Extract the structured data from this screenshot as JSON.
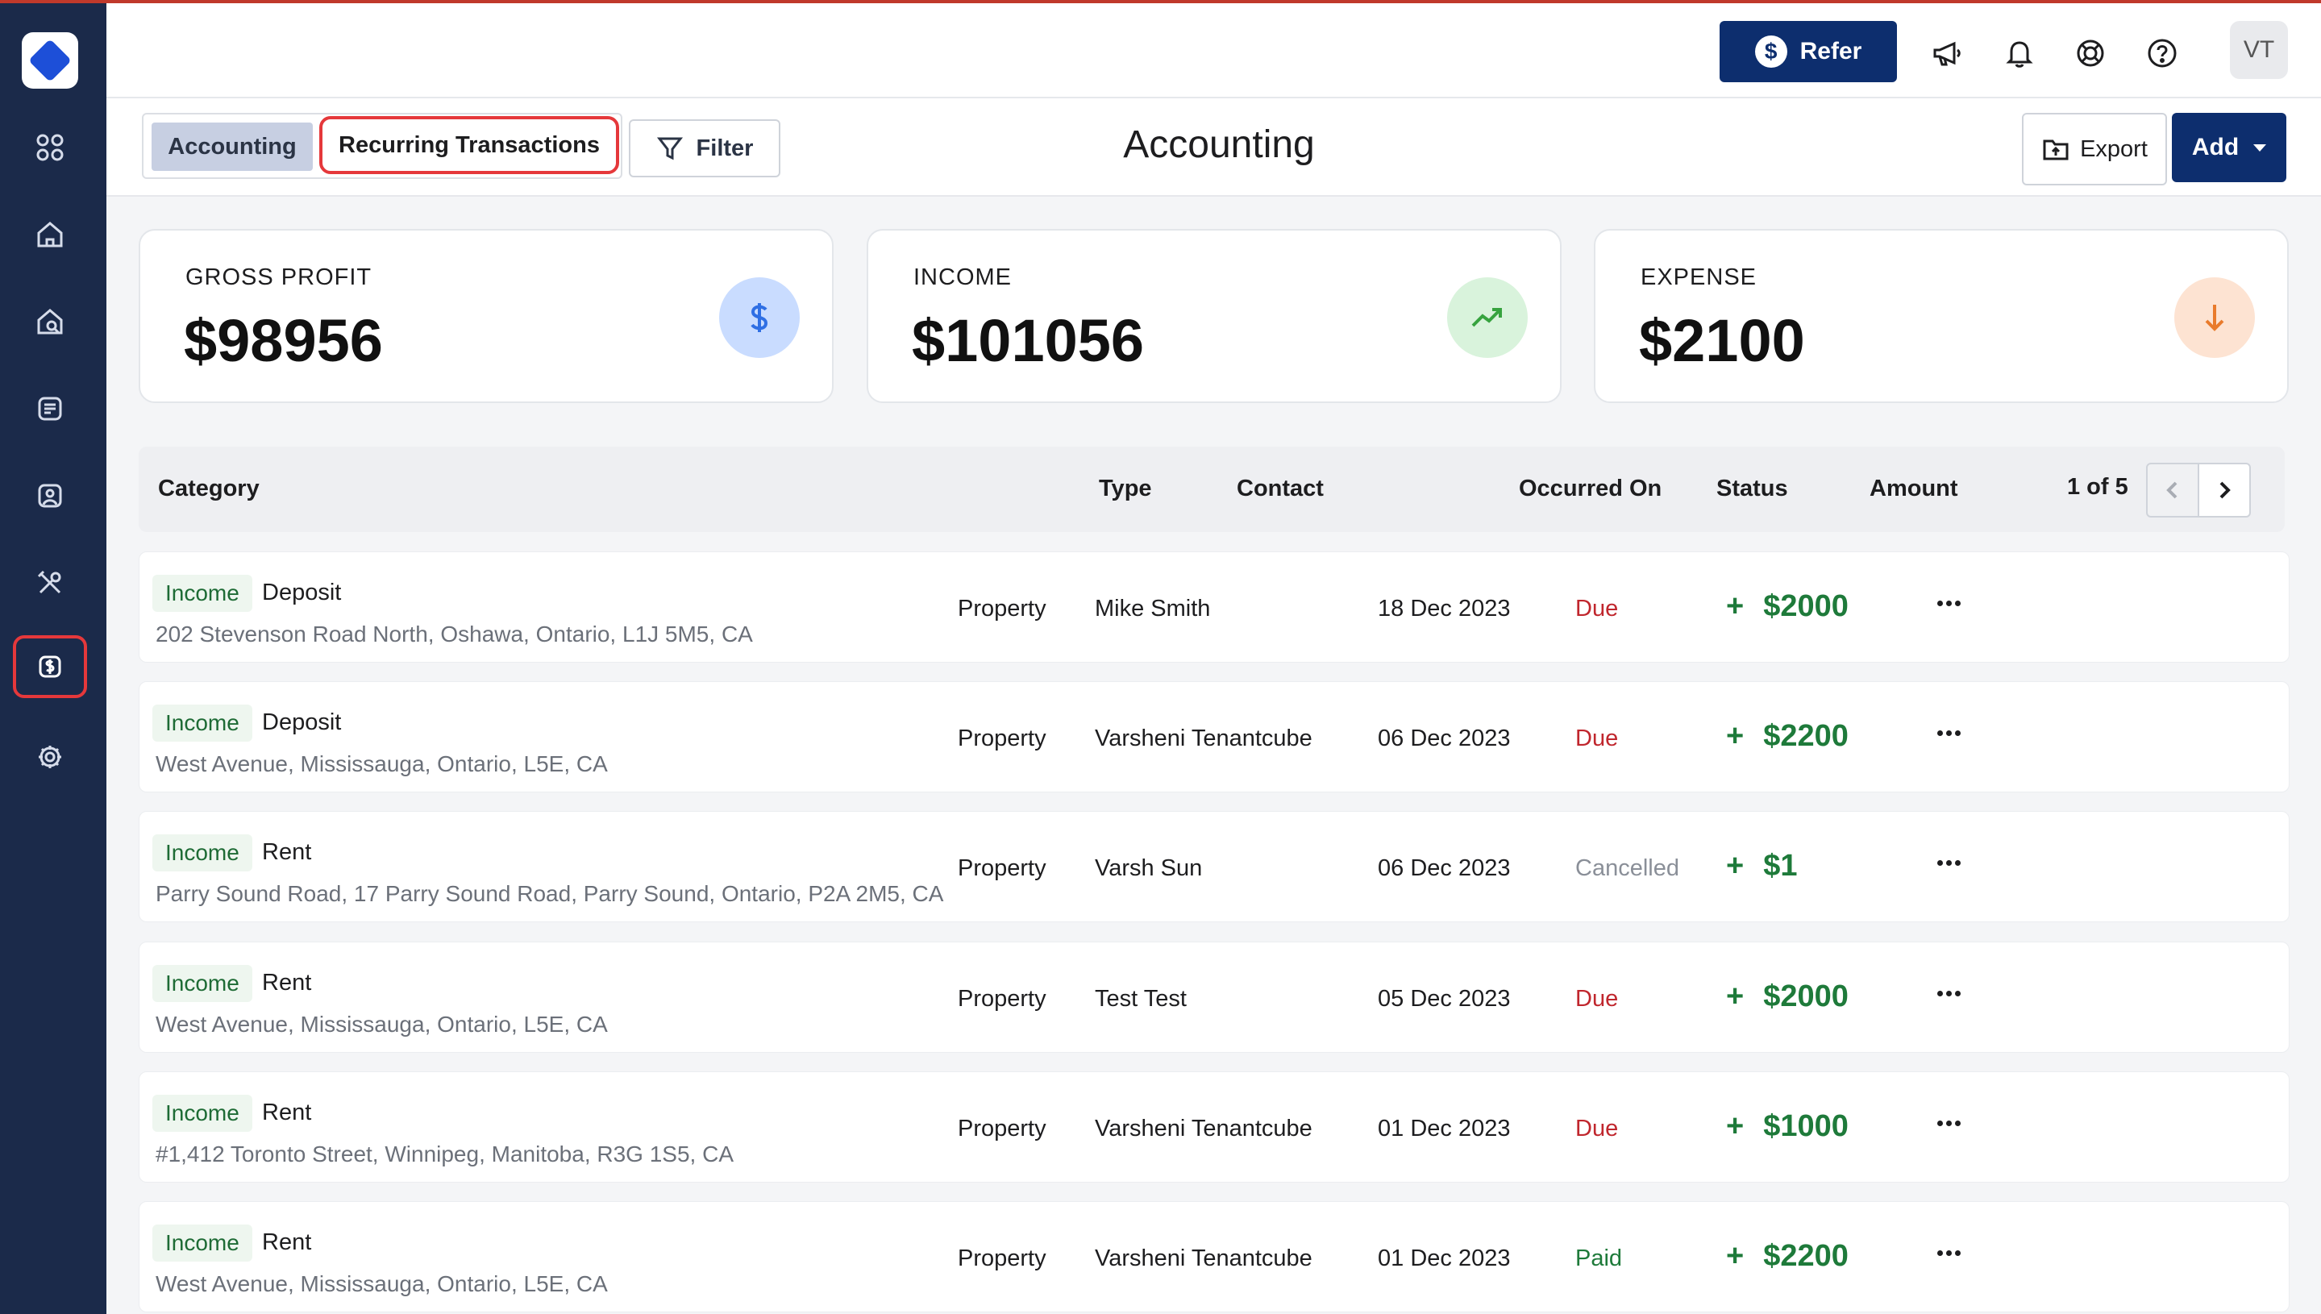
{
  "header": {
    "refer_label": "Refer",
    "refer_icon": "dollar-coin-icon",
    "avatar_initials": "VT"
  },
  "toolbar": {
    "tab_accounting": "Accounting",
    "tab_recurring": "Recurring Transactions",
    "filter_label": "Filter",
    "page_title": "Accounting",
    "export_label": "Export",
    "add_label": "Add"
  },
  "cards": [
    {
      "label": "GROSS PROFIT",
      "value": "$98956",
      "icon": "dollar-icon",
      "icon_bg": "#c9dcff",
      "icon_color": "#2f6fe4"
    },
    {
      "label": "INCOME",
      "value": "$101056",
      "icon": "trend-up-icon",
      "icon_bg": "#d9f3dc",
      "icon_color": "#37a33f"
    },
    {
      "label": "EXPENSE",
      "value": "$2100",
      "icon": "arrow-down-icon",
      "icon_bg": "#fde3d2",
      "icon_color": "#e97b2c"
    }
  ],
  "table": {
    "headers": [
      "Category",
      "Type",
      "Contact",
      "Occurred On",
      "Status",
      "Amount"
    ],
    "pager": "1 of 5",
    "rows": [
      {
        "badge": "Income",
        "category": "Deposit",
        "address": "202 Stevenson Road North, Oshawa, Ontario, L1J 5M5, CA",
        "type": "Property",
        "contact": "Mike Smith",
        "date": "18 Dec 2023",
        "status": "Due",
        "amount": "$2000"
      },
      {
        "badge": "Income",
        "category": "Deposit",
        "address": "West Avenue, Mississauga, Ontario, L5E, CA",
        "type": "Property",
        "contact": "Varsheni Tenantcube",
        "date": "06 Dec 2023",
        "status": "Due",
        "amount": "$2200"
      },
      {
        "badge": "Income",
        "category": "Rent",
        "address": "Parry Sound Road, 17 Parry Sound Road, Parry Sound, Ontario, P2A 2M5, CA",
        "type": "Property",
        "contact": "Varsh Sun",
        "date": "06 Dec 2023",
        "status": "Cancelled",
        "amount": "$1"
      },
      {
        "badge": "Income",
        "category": "Rent",
        "address": "West Avenue, Mississauga, Ontario, L5E, CA",
        "type": "Property",
        "contact": "Test Test",
        "date": "05 Dec 2023",
        "status": "Due",
        "amount": "$2000"
      },
      {
        "badge": "Income",
        "category": "Rent",
        "address": "#1,412 Toronto Street, Winnipeg, Manitoba, R3G 1S5, CA",
        "type": "Property",
        "contact": "Varsheni Tenantcube",
        "date": "01 Dec 2023",
        "status": "Due",
        "amount": "$1000"
      },
      {
        "badge": "Income",
        "category": "Rent",
        "address": "West Avenue, Mississauga, Ontario, L5E, CA",
        "type": "Property",
        "contact": "Varsheni Tenantcube",
        "date": "01 Dec 2023",
        "status": "Paid",
        "amount": "$2200"
      }
    ]
  },
  "status_colors": {
    "Due": "#c0262d",
    "Cancelled": "#8a8f98",
    "Paid": "#1e7a3a"
  },
  "sidebar": {
    "items": [
      {
        "icon": "grid-icon"
      },
      {
        "icon": "home-icon"
      },
      {
        "icon": "home-search-icon"
      },
      {
        "icon": "document-icon"
      },
      {
        "icon": "user-card-icon"
      },
      {
        "icon": "tools-icon"
      },
      {
        "icon": "dollar-square-icon",
        "active": true
      },
      {
        "icon": "gear-icon"
      }
    ]
  }
}
